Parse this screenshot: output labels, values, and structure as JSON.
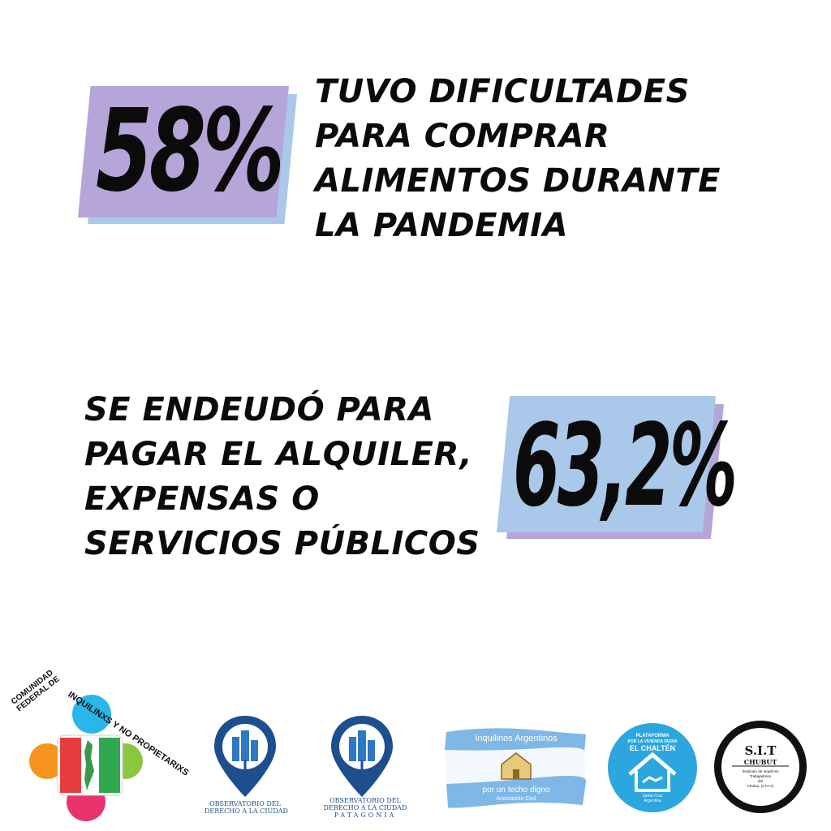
{
  "stat_1": {
    "value": "58%",
    "lines": [
      "TUVO DIFICULTADES",
      "PARA COMPRAR",
      "ALIMENTOS DURANTE",
      "LA PANDEMIA"
    ]
  },
  "stat_2": {
    "value": "63,2%",
    "lines": [
      "SE ENDEUDÓ PARA",
      "PAGAR EL ALQUILER,",
      "EXPENSAS O",
      "SERVICIOS PÚBLICOS"
    ]
  },
  "colors": {
    "lavender": "#b6a5d8",
    "light_blue": "#a9c8ea",
    "text": "#0b0b0b",
    "observatorio_blue": "#1d4f8f"
  },
  "logos": {
    "comunidad": {
      "icon": "people-circle-argentina-map-icon",
      "text_lines": [
        "COMUNIDAD",
        "FEDERAL DE",
        "INQUILINXS Y NO PROPIETARIXS"
      ]
    },
    "observatorio_1": {
      "icon": "map-pin-city-icon",
      "caption_lines": [
        "OBSERVATORIO DEL",
        "DERECHO A LA CIUDAD"
      ]
    },
    "observatorio_2": {
      "icon": "map-pin-city-icon",
      "caption_lines": [
        "OBSERVATORIO DEL",
        "DERECHO A LA CIUDAD",
        "PATAGONIA"
      ]
    },
    "inquilinos_argentinos": {
      "icon": "house-flag-icon",
      "title": "Inquilinos Argentinos",
      "subtitle": "por un techo digno",
      "small": "Asociación Civil"
    },
    "el_chalten": {
      "icon": "house-handshake-icon",
      "top_lines": [
        "PLATAFORMA",
        "POR LA VIVIENDA DIGNA",
        "EL CHALTÉN"
      ],
      "bottom_lines": [
        "Santa Cruz",
        "Argentina"
      ]
    },
    "sit": {
      "icon": "badge-seal-icon",
      "title": "S.I.T",
      "subtitle": "CHUBUT",
      "small_lines": [
        "Sindicato de Inquilinos",
        "Trabajadores",
        "del",
        "Chubut. (CTA A)"
      ]
    }
  }
}
